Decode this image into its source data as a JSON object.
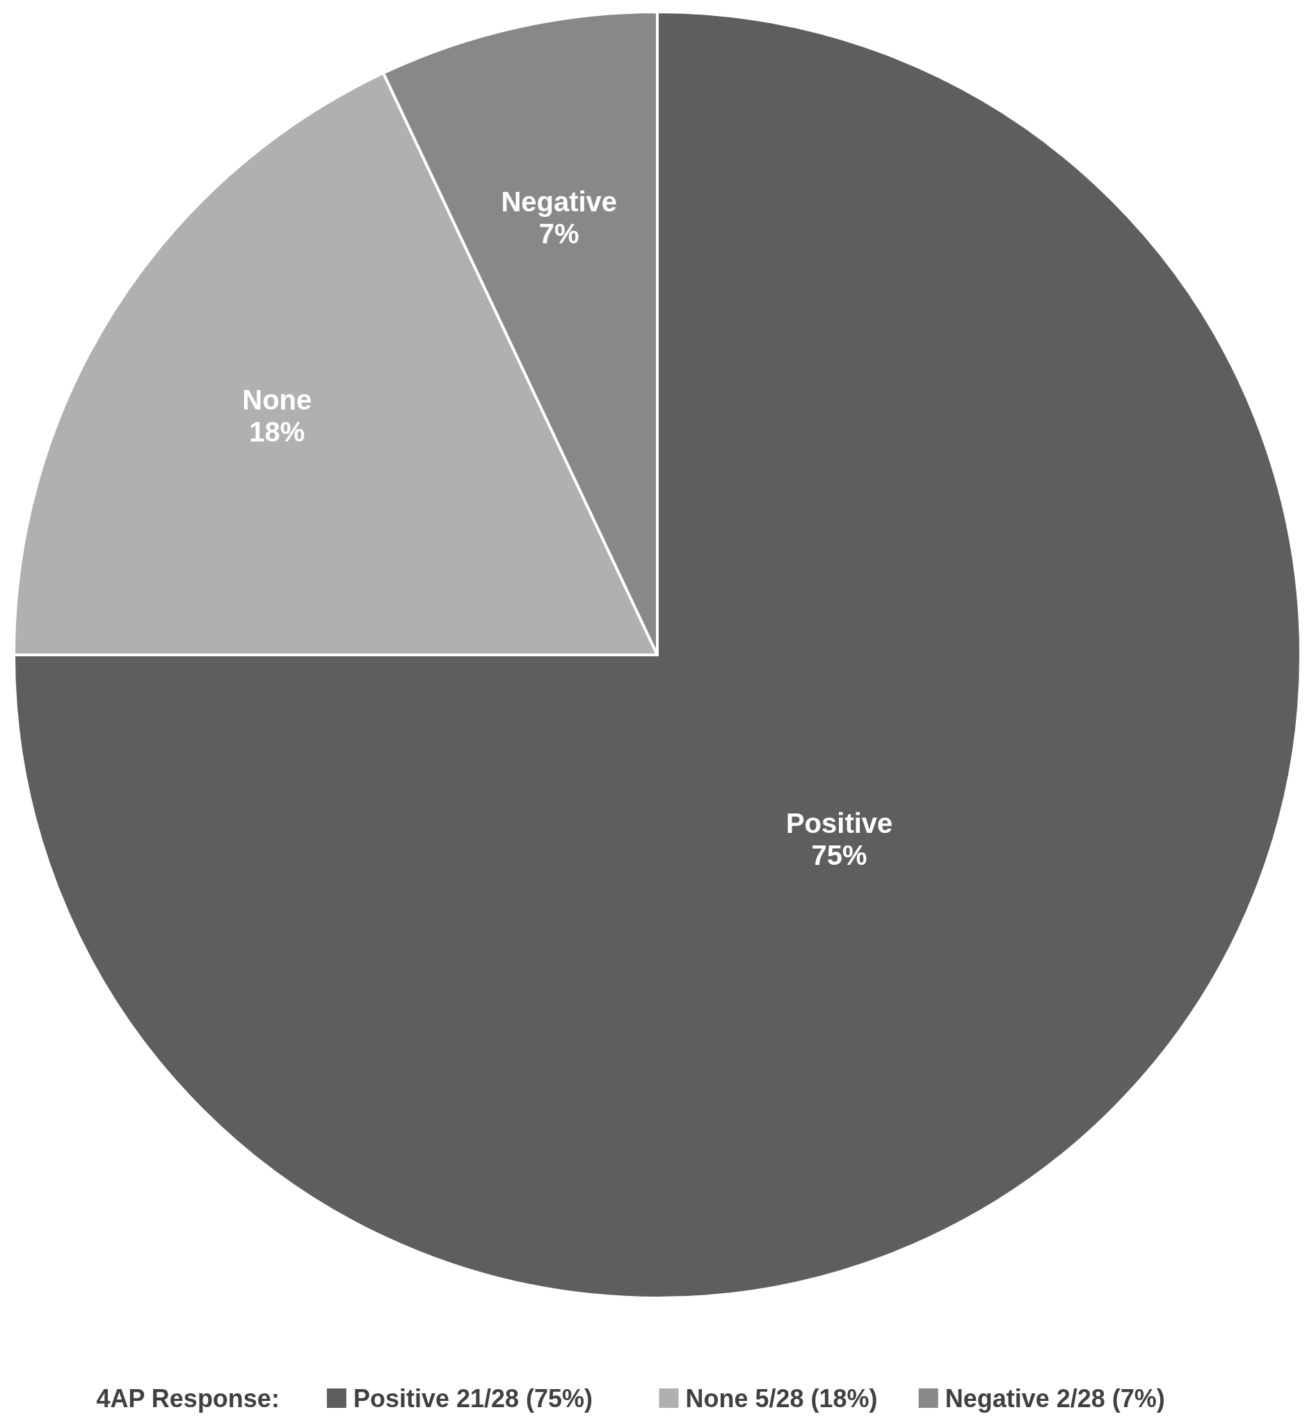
{
  "chart_data": {
    "type": "pie",
    "legend_title": "4AP Response:",
    "categories": [
      "Positive 21/28 (75%)",
      "None 5/28 (18%)",
      "Negative 2/28 (7%)"
    ],
    "values": [
      75,
      18,
      7
    ],
    "value_labels": [
      "Positive\n75%",
      "None\n18%",
      "Negative\n7%"
    ],
    "colors": [
      "#5e5e5e",
      "#b0b0b0",
      "#888888"
    ],
    "legend": "bottom"
  }
}
